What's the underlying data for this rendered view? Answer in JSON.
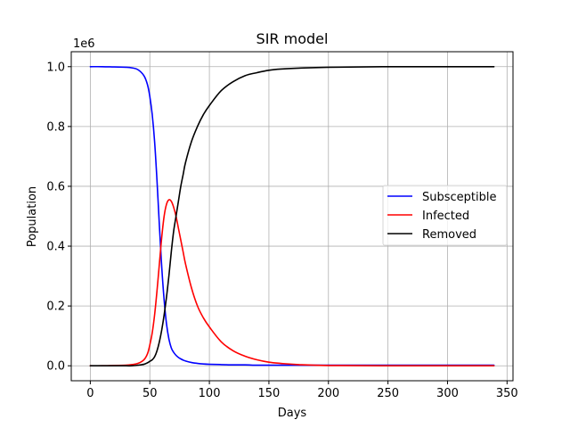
{
  "chart_data": {
    "type": "line",
    "title": "SIR model",
    "xlabel": "Days",
    "ylabel": "Population",
    "y_offset_label": "1e6",
    "xlim": [
      -16,
      355
    ],
    "ylim": [
      -0.05,
      1.05
    ],
    "x_ticks": [
      0,
      50,
      100,
      150,
      200,
      250,
      300,
      350
    ],
    "x_tick_labels": [
      "0",
      "50",
      "100",
      "150",
      "200",
      "250",
      "300",
      "350"
    ],
    "y_ticks": [
      0.0,
      0.2,
      0.4,
      0.6,
      0.8,
      1.0
    ],
    "y_tick_labels": [
      "0.0",
      "0.2",
      "0.4",
      "0.6",
      "0.8",
      "1.0"
    ],
    "grid": true,
    "legend_position": "center-right",
    "x": [
      0,
      10,
      20,
      30,
      35,
      40,
      45,
      48,
      50,
      52,
      54,
      56,
      58,
      60,
      62,
      64,
      66,
      68,
      70,
      72,
      74,
      76,
      78,
      80,
      85,
      90,
      95,
      100,
      110,
      120,
      130,
      140,
      150,
      160,
      175,
      200,
      250,
      300,
      339
    ],
    "series": [
      {
        "name": "Subsceptible",
        "color": "#0000ff",
        "values": [
          1.0,
          1.0,
          0.999,
          0.998,
          0.996,
          0.99,
          0.97,
          0.94,
          0.9,
          0.84,
          0.75,
          0.62,
          0.47,
          0.33,
          0.22,
          0.14,
          0.09,
          0.06,
          0.045,
          0.035,
          0.028,
          0.023,
          0.019,
          0.016,
          0.011,
          0.008,
          0.006,
          0.005,
          0.004,
          0.003,
          0.003,
          0.002,
          0.002,
          0.002,
          0.002,
          0.002,
          0.002,
          0.002,
          0.002
        ]
      },
      {
        "name": "Infected",
        "color": "#ff0000",
        "values": [
          0.0,
          0.0,
          0.001,
          0.002,
          0.004,
          0.008,
          0.02,
          0.04,
          0.07,
          0.11,
          0.17,
          0.25,
          0.34,
          0.43,
          0.5,
          0.54,
          0.555,
          0.55,
          0.53,
          0.5,
          0.46,
          0.42,
          0.38,
          0.34,
          0.26,
          0.2,
          0.16,
          0.13,
          0.08,
          0.05,
          0.032,
          0.02,
          0.012,
          0.008,
          0.004,
          0.001,
          0.0,
          0.0,
          0.0
        ]
      },
      {
        "name": "Removed",
        "color": "#000000",
        "values": [
          0.0,
          0.0,
          0.0,
          0.0,
          0.0,
          0.002,
          0.005,
          0.01,
          0.015,
          0.02,
          0.03,
          0.05,
          0.08,
          0.12,
          0.17,
          0.23,
          0.3,
          0.38,
          0.45,
          0.5,
          0.55,
          0.6,
          0.64,
          0.68,
          0.75,
          0.8,
          0.84,
          0.87,
          0.92,
          0.95,
          0.97,
          0.98,
          0.988,
          0.992,
          0.995,
          0.998,
          1.0,
          1.0,
          1.0
        ]
      }
    ]
  }
}
